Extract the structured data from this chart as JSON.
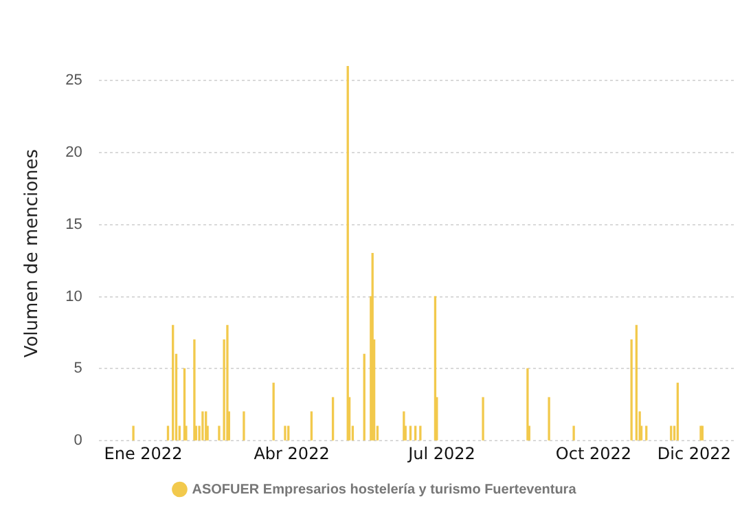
{
  "chart_data": {
    "type": "bar",
    "ylabel": "Volumen de menciones",
    "x": [
      "2021-12-26",
      "2022-01-16",
      "2022-01-19",
      "2022-01-21",
      "2022-01-23",
      "2022-01-26",
      "2022-01-27",
      "2022-02-01",
      "2022-02-02",
      "2022-02-04",
      "2022-02-06",
      "2022-02-08",
      "2022-02-09",
      "2022-02-16",
      "2022-02-19",
      "2022-02-21",
      "2022-02-22",
      "2022-03-03",
      "2022-03-21",
      "2022-03-28",
      "2022-03-30",
      "2022-04-13",
      "2022-04-26",
      "2022-05-05",
      "2022-05-06",
      "2022-05-08",
      "2022-05-15",
      "2022-05-19",
      "2022-05-20",
      "2022-05-21",
      "2022-05-23",
      "2022-06-08",
      "2022-06-09",
      "2022-06-12",
      "2022-06-15",
      "2022-06-18",
      "2022-06-27",
      "2022-06-28",
      "2022-07-26",
      "2022-08-22",
      "2022-08-23",
      "2022-09-04",
      "2022-09-19",
      "2022-10-24",
      "2022-10-27",
      "2022-10-29",
      "2022-10-30",
      "2022-11-02",
      "2022-11-17",
      "2022-11-19",
      "2022-11-21",
      "2022-12-05",
      "2022-12-06"
    ],
    "series": [
      {
        "name": "ASOFUER Empresarios hostelería y turismo Fuerteventura",
        "color": "#f2c94c",
        "values": [
          1,
          1,
          8,
          6,
          1,
          5,
          1,
          7,
          1,
          1,
          2,
          2,
          1,
          1,
          7,
          8,
          2,
          2,
          4,
          1,
          1,
          2,
          3,
          26,
          3,
          1,
          6,
          10,
          13,
          7,
          1,
          2,
          1,
          1,
          1,
          1,
          10,
          3,
          3,
          5,
          1,
          3,
          1,
          7,
          8,
          2,
          1,
          1,
          1,
          1,
          4,
          1,
          1
        ]
      }
    ],
    "xlim": [
      "2021-12-05",
      "2022-12-25"
    ],
    "xticks": [
      {
        "value": "2022-01-01",
        "label": "Ene 2022"
      },
      {
        "value": "2022-04-01",
        "label": "Abr 2022"
      },
      {
        "value": "2022-07-01",
        "label": "Jul 2022"
      },
      {
        "value": "2022-10-01",
        "label": "Oct 2022"
      },
      {
        "value": "2022-12-01",
        "label": "Dic 2022"
      }
    ],
    "ylim": [
      0,
      26
    ],
    "yticks": [
      0,
      5,
      10,
      15,
      20,
      25
    ],
    "grid": "y",
    "legend": "bottom"
  }
}
